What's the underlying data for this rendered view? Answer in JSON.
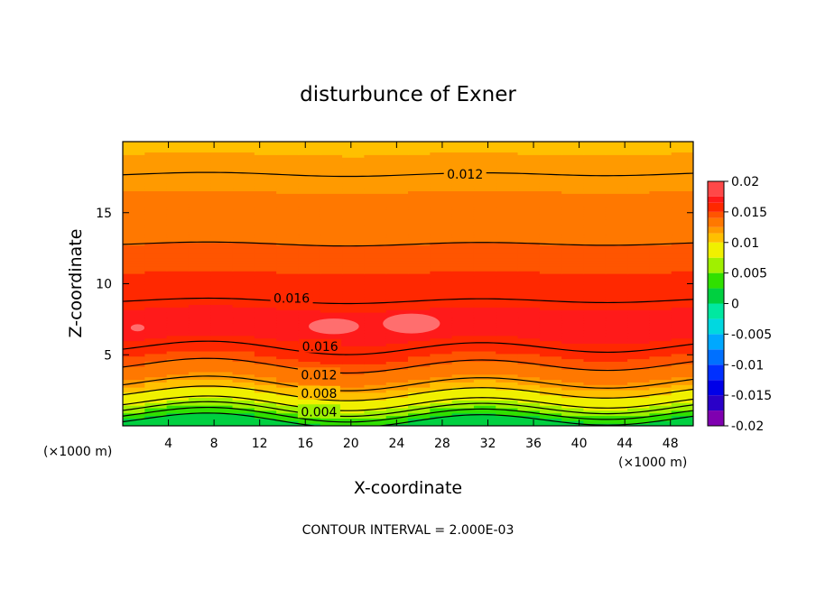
{
  "chart_data": {
    "type": "heatmap",
    "title": "disturbunce of Exner",
    "xlabel": "X-coordinate",
    "ylabel": "Z-coordinate",
    "x_unit": "(×1000 m)",
    "y_unit": "(×1000 m)",
    "xlim": [
      0,
      50
    ],
    "ylim": [
      0,
      20
    ],
    "xticks": [
      4,
      8,
      12,
      16,
      20,
      24,
      28,
      32,
      36,
      40,
      44,
      48
    ],
    "yticks": [
      5,
      10,
      15
    ],
    "contour_interval": 0.002,
    "footer": "CONTOUR INTERVAL = 2.000E-03",
    "colorbar": {
      "ticks": [
        "0.02",
        "0.015",
        "0.01",
        "0.005",
        "0",
        "-0.005",
        "-0.01",
        "-0.015",
        "-0.02"
      ],
      "min": -0.02,
      "max": 0.02
    },
    "contour_labels": [
      {
        "text": "0.012",
        "x": 30,
        "z": 17.7
      },
      {
        "text": "0.016",
        "x": 14.8,
        "z": 9.0
      },
      {
        "text": "0.016",
        "x": 17.3,
        "z": 5.6
      },
      {
        "text": "0.012",
        "x": 17.2,
        "z": 3.6
      },
      {
        "text": "0.008",
        "x": 17.2,
        "z": 2.3
      },
      {
        "text": "0.004",
        "x": 17.2,
        "z": 1.0
      }
    ],
    "profile": [
      {
        "z": 0.0,
        "v": 0.0
      },
      {
        "z": 0.8,
        "v": 0.004
      },
      {
        "z": 1.6,
        "v": 0.008
      },
      {
        "z": 3.0,
        "v": 0.012
      },
      {
        "z": 5.5,
        "v": 0.016
      },
      {
        "z": 7.2,
        "v": 0.0175
      },
      {
        "z": 8.8,
        "v": 0.016
      },
      {
        "z": 12.8,
        "v": 0.014
      },
      {
        "z": 17.7,
        "v": 0.012
      },
      {
        "z": 20.0,
        "v": 0.0112
      }
    ]
  }
}
